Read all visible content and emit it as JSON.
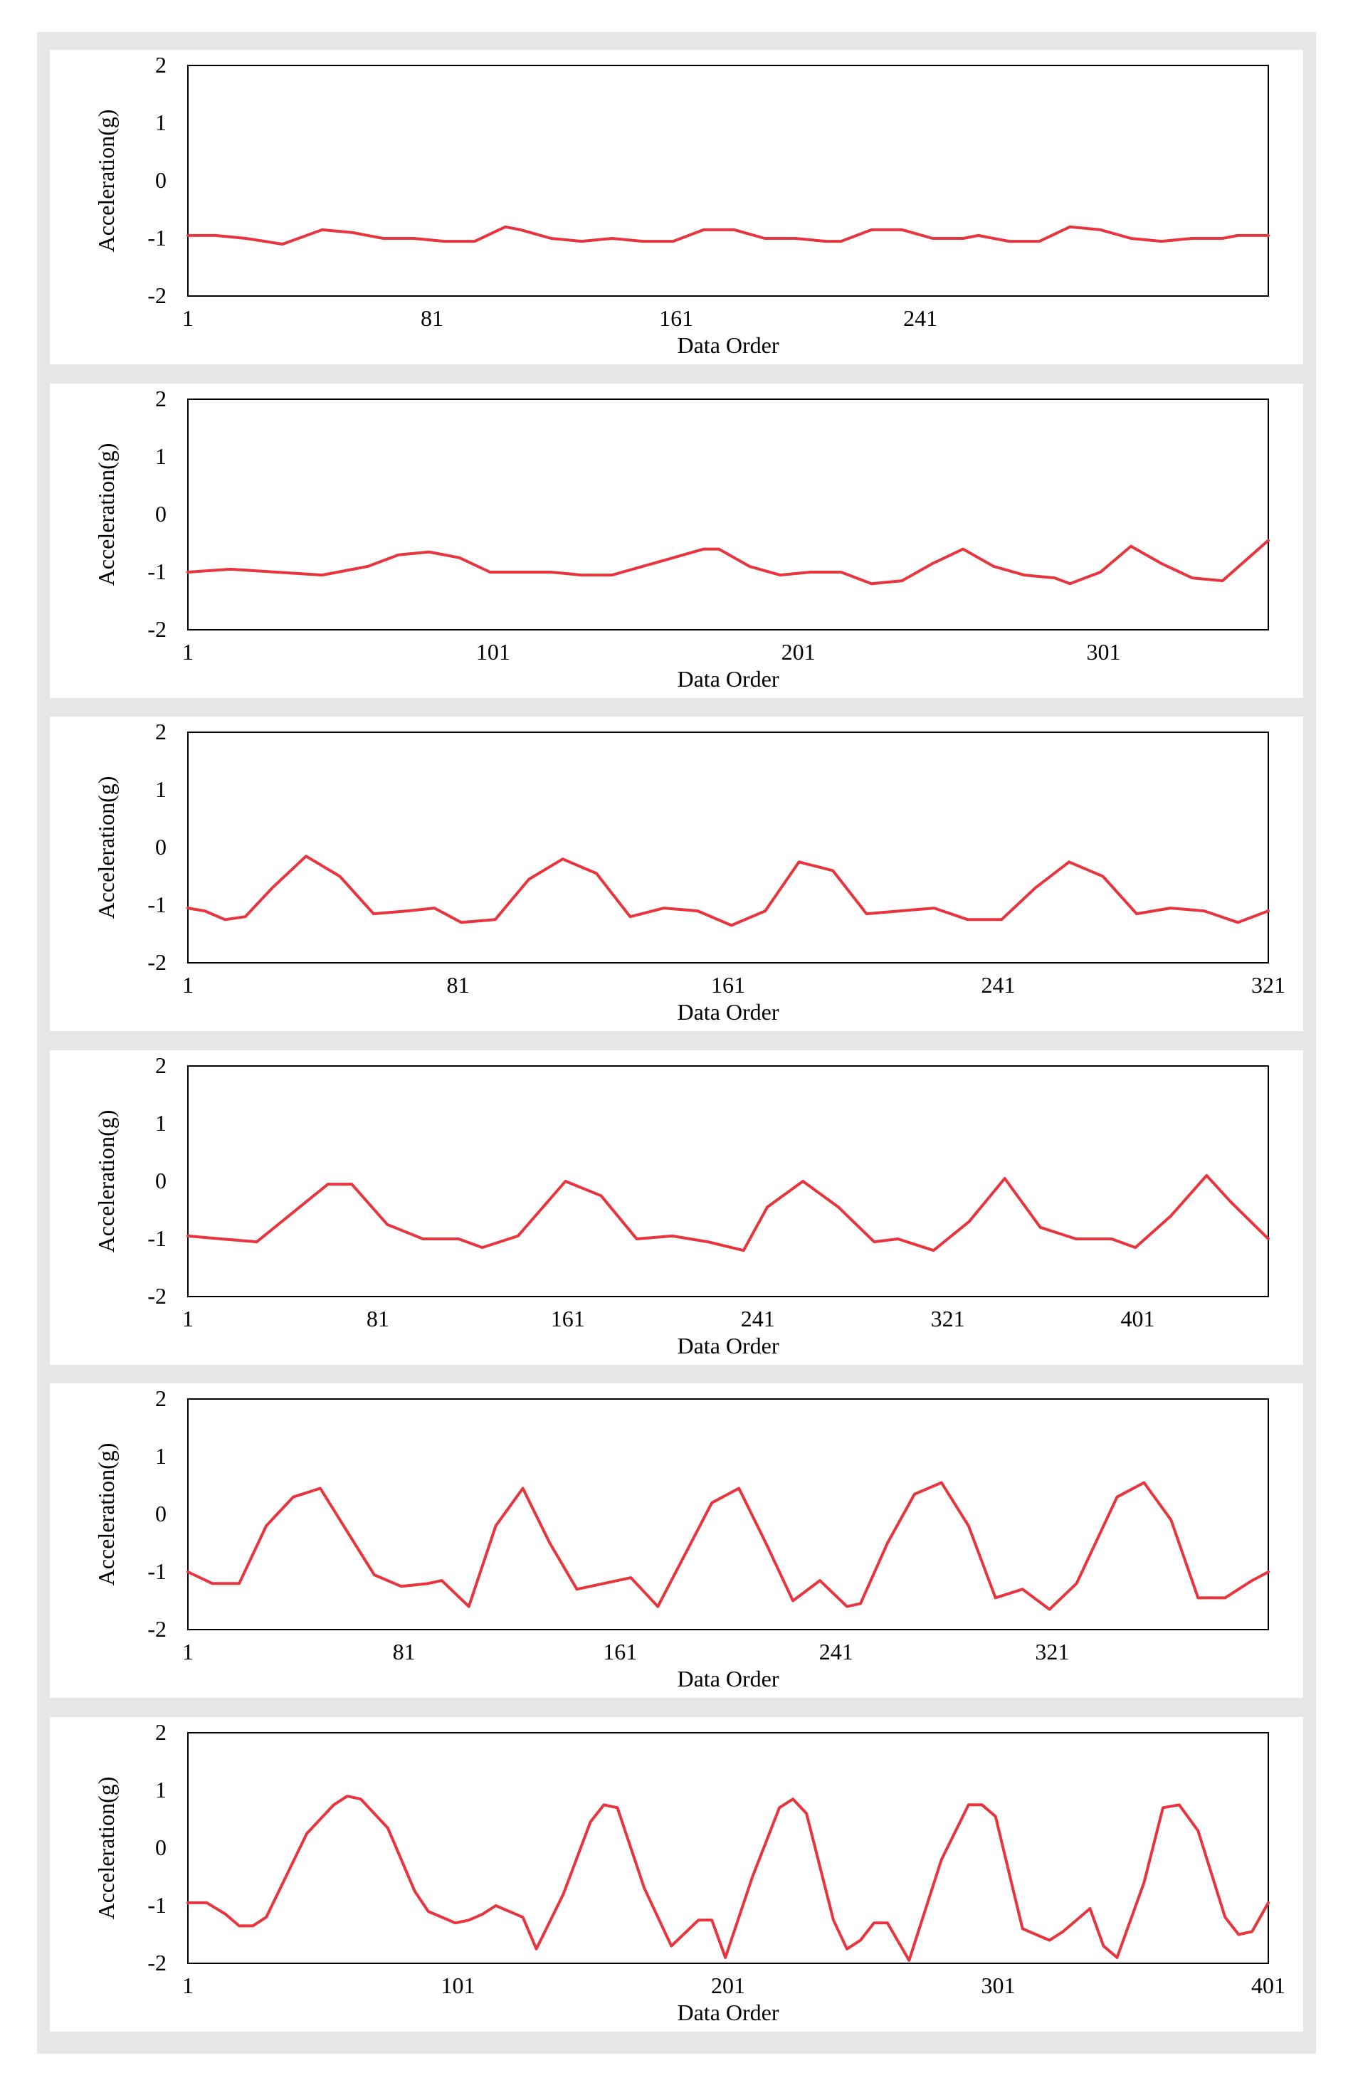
{
  "colors": {
    "line": "#e8343c",
    "frame": "#e6e6e6",
    "axes": "#000000"
  },
  "chart_data": [
    {
      "type": "line",
      "xlabel": "Data Order",
      "ylabel": "Acceleration(g)",
      "ylim": [
        -2,
        2
      ],
      "xlim": [
        1,
        355
      ],
      "yticks": [
        "2",
        "1",
        "0",
        "-1",
        "-2"
      ],
      "xticks": [
        {
          "v": 1,
          "label": "1"
        },
        {
          "v": 81,
          "label": "81"
        },
        {
          "v": 161,
          "label": "161"
        },
        {
          "v": 241,
          "label": "241"
        }
      ],
      "x": [
        1,
        10,
        20,
        32,
        45,
        55,
        65,
        75,
        85,
        95,
        105,
        110,
        120,
        130,
        140,
        150,
        160,
        170,
        180,
        190,
        200,
        210,
        215,
        225,
        235,
        245,
        255,
        260,
        270,
        280,
        290,
        300,
        310,
        320,
        330,
        340,
        345,
        355
      ],
      "y": [
        -0.95,
        -0.95,
        -1.0,
        -1.1,
        -0.85,
        -0.9,
        -1.0,
        -1.0,
        -1.05,
        -1.05,
        -0.8,
        -0.85,
        -1.0,
        -1.05,
        -1.0,
        -1.05,
        -1.05,
        -0.85,
        -0.85,
        -1.0,
        -1.0,
        -1.05,
        -1.05,
        -0.85,
        -0.85,
        -1.0,
        -1.0,
        -0.95,
        -1.05,
        -1.05,
        -0.8,
        -0.85,
        -1.0,
        -1.05,
        -1.0,
        -1.0,
        -0.95,
        -0.95
      ]
    },
    {
      "type": "line",
      "xlabel": "Data Order",
      "ylabel": "Acceleration(g)",
      "ylim": [
        -2,
        2
      ],
      "xlim": [
        1,
        355
      ],
      "yticks": [
        "2",
        "1",
        "0",
        "-1",
        "-2"
      ],
      "xticks": [
        {
          "v": 1,
          "label": "1"
        },
        {
          "v": 101,
          "label": "101"
        },
        {
          "v": 201,
          "label": "201"
        },
        {
          "v": 301,
          "label": "301"
        }
      ],
      "x": [
        1,
        15,
        30,
        45,
        60,
        70,
        80,
        90,
        100,
        110,
        120,
        130,
        140,
        150,
        160,
        170,
        175,
        185,
        195,
        205,
        215,
        225,
        235,
        245,
        255,
        265,
        275,
        285,
        290,
        300,
        310,
        320,
        330,
        340,
        355
      ],
      "y": [
        -1.0,
        -0.95,
        -1.0,
        -1.05,
        -0.9,
        -0.7,
        -0.65,
        -0.75,
        -1.0,
        -1.0,
        -1.0,
        -1.05,
        -1.05,
        -0.9,
        -0.75,
        -0.6,
        -0.6,
        -0.9,
        -1.05,
        -1.0,
        -1.0,
        -1.2,
        -1.15,
        -0.85,
        -0.6,
        -0.9,
        -1.05,
        -1.1,
        -1.2,
        -1.0,
        -0.55,
        -0.85,
        -1.1,
        -1.15,
        -0.45
      ]
    },
    {
      "type": "line",
      "xlabel": "Data Order",
      "ylabel": "Acceleration(g)",
      "ylim": [
        -2,
        2
      ],
      "xlim": [
        1,
        321
      ],
      "yticks": [
        "2",
        "1",
        "0",
        "-1",
        "-2"
      ],
      "xticks": [
        {
          "v": 1,
          "label": "1"
        },
        {
          "v": 81,
          "label": "81"
        },
        {
          "v": 161,
          "label": "161"
        },
        {
          "v": 241,
          "label": "241"
        },
        {
          "v": 321,
          "label": "321"
        }
      ],
      "x": [
        1,
        6,
        12,
        18,
        26,
        36,
        46,
        56,
        66,
        74,
        82,
        92,
        102,
        112,
        122,
        132,
        142,
        152,
        162,
        172,
        182,
        192,
        202,
        212,
        222,
        232,
        242,
        252,
        262,
        272,
        282,
        292,
        302,
        312,
        321
      ],
      "y": [
        -1.05,
        -1.1,
        -1.25,
        -1.2,
        -0.7,
        -0.15,
        -0.5,
        -1.15,
        -1.1,
        -1.05,
        -1.3,
        -1.25,
        -0.55,
        -0.2,
        -0.45,
        -1.2,
        -1.05,
        -1.1,
        -1.35,
        -1.1,
        -0.25,
        -0.4,
        -1.15,
        -1.1,
        -1.05,
        -1.25,
        -1.25,
        -0.7,
        -0.25,
        -0.5,
        -1.15,
        -1.05,
        -1.1,
        -1.3,
        -1.1
      ]
    },
    {
      "type": "line",
      "xlabel": "Data Order",
      "ylabel": "Acceleration(g)",
      "ylim": [
        -2,
        2
      ],
      "xlim": [
        1,
        456
      ],
      "yticks": [
        "2",
        "1",
        "0",
        "-1",
        "-2"
      ],
      "xticks": [
        {
          "v": 1,
          "label": "1"
        },
        {
          "v": 81,
          "label": "81"
        },
        {
          "v": 161,
          "label": "161"
        },
        {
          "v": 241,
          "label": "241"
        },
        {
          "v": 321,
          "label": "321"
        },
        {
          "v": 401,
          "label": "401"
        }
      ],
      "x": [
        1,
        15,
        30,
        45,
        60,
        70,
        85,
        100,
        115,
        125,
        140,
        160,
        175,
        190,
        205,
        220,
        235,
        245,
        260,
        275,
        290,
        300,
        315,
        330,
        345,
        360,
        375,
        390,
        400,
        415,
        430,
        440,
        456
      ],
      "y": [
        -0.95,
        -1.0,
        -1.05,
        -0.55,
        -0.05,
        -0.05,
        -0.75,
        -1.0,
        -1.0,
        -1.15,
        -0.95,
        0.0,
        -0.25,
        -1.0,
        -0.95,
        -1.05,
        -1.2,
        -0.45,
        0.0,
        -0.45,
        -1.05,
        -1.0,
        -1.2,
        -0.7,
        0.05,
        -0.8,
        -1.0,
        -1.0,
        -1.15,
        -0.6,
        0.1,
        -0.35,
        -1.0
      ]
    },
    {
      "type": "line",
      "xlabel": "Data Order",
      "ylabel": "Acceleration(g)",
      "ylim": [
        -2,
        2
      ],
      "xlim": [
        1,
        401
      ],
      "yticks": [
        "2",
        "1",
        "0",
        "-1",
        "-2"
      ],
      "xticks": [
        {
          "v": 1,
          "label": "1"
        },
        {
          "v": 81,
          "label": "81"
        },
        {
          "v": 161,
          "label": "161"
        },
        {
          "v": 241,
          "label": "241"
        },
        {
          "v": 321,
          "label": "321"
        }
      ],
      "x": [
        1,
        10,
        20,
        30,
        40,
        50,
        60,
        70,
        80,
        90,
        95,
        105,
        115,
        125,
        135,
        145,
        155,
        165,
        175,
        185,
        195,
        205,
        215,
        225,
        235,
        245,
        250,
        260,
        270,
        280,
        290,
        300,
        310,
        320,
        330,
        345,
        355,
        365,
        375,
        385,
        395,
        401
      ],
      "y": [
        -1.0,
        -1.2,
        -1.2,
        -0.2,
        0.3,
        0.45,
        -0.3,
        -1.05,
        -1.25,
        -1.2,
        -1.15,
        -1.6,
        -0.2,
        0.45,
        -0.5,
        -1.3,
        -1.2,
        -1.1,
        -1.6,
        -0.7,
        0.2,
        0.45,
        -0.5,
        -1.5,
        -1.15,
        -1.6,
        -1.55,
        -0.5,
        0.35,
        0.55,
        -0.2,
        -1.45,
        -1.3,
        -1.65,
        -1.2,
        0.3,
        0.55,
        -0.1,
        -1.45,
        -1.45,
        -1.15,
        -1.0
      ]
    },
    {
      "type": "line",
      "xlabel": "Data Order",
      "ylabel": "Acceleration(g)",
      "ylim": [
        -2,
        2
      ],
      "xlim": [
        1,
        401
      ],
      "yticks": [
        "2",
        "1",
        "0",
        "-1",
        "-2"
      ],
      "xticks": [
        {
          "v": 1,
          "label": "1"
        },
        {
          "v": 101,
          "label": "101"
        },
        {
          "v": 201,
          "label": "201"
        },
        {
          "v": 301,
          "label": "301"
        },
        {
          "v": 401,
          "label": "401"
        }
      ],
      "x": [
        1,
        8,
        15,
        20,
        25,
        30,
        45,
        55,
        60,
        65,
        75,
        85,
        90,
        100,
        105,
        110,
        115,
        125,
        130,
        140,
        150,
        155,
        160,
        170,
        180,
        190,
        195,
        200,
        210,
        220,
        225,
        230,
        240,
        245,
        250,
        255,
        260,
        268,
        280,
        290,
        295,
        300,
        310,
        320,
        325,
        335,
        340,
        345,
        355,
        362,
        368,
        375,
        385,
        390,
        395,
        401
      ],
      "y": [
        -0.95,
        -0.95,
        -1.15,
        -1.35,
        -1.35,
        -1.2,
        0.25,
        0.75,
        0.9,
        0.85,
        0.35,
        -0.75,
        -1.1,
        -1.3,
        -1.25,
        -1.15,
        -1.0,
        -1.2,
        -1.75,
        -0.8,
        0.45,
        0.75,
        0.7,
        -0.7,
        -1.7,
        -1.25,
        -1.25,
        -1.9,
        -0.5,
        0.7,
        0.85,
        0.6,
        -1.25,
        -1.75,
        -1.6,
        -1.3,
        -1.3,
        -1.95,
        -0.2,
        0.75,
        0.75,
        0.55,
        -1.4,
        -1.6,
        -1.45,
        -1.05,
        -1.7,
        -1.9,
        -0.6,
        0.7,
        0.75,
        0.3,
        -1.2,
        -1.5,
        -1.45,
        -0.95
      ]
    }
  ]
}
